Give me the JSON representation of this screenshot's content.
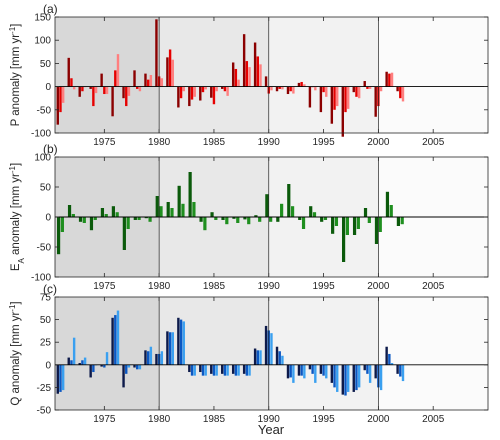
{
  "xlabel": "Year",
  "chart_data": [
    {
      "type": "bar",
      "panel_label": "(a)",
      "ylabel": "P anomaly [mm yr⁻¹]",
      "ylabel_main": "P anomaly [mm yr",
      "ylabel_sup": "-1",
      "ylabel_tail": "]",
      "ylim": [
        -100,
        150
      ],
      "yticks": [
        -100,
        -50,
        0,
        50,
        100,
        150
      ],
      "xlim": [
        1970.5,
        2010
      ],
      "xticks": [
        1975,
        1980,
        1985,
        1990,
        1995,
        2000,
        2005
      ],
      "dividers": [
        1980,
        1990,
        2000
      ],
      "era_shades": [
        "#d8d8d8",
        "#e8e8e8",
        "#f2f2f2",
        "#fbfbfb"
      ],
      "series": [
        {
          "color": "#8b0000",
          "values": [
            -82,
            62,
            -22,
            -5,
            28,
            -64,
            -25,
            35,
            28,
            145,
            63,
            -45,
            -42,
            -30,
            -24,
            -5,
            52,
            113,
            95,
            22,
            -10,
            -16,
            8,
            -45,
            -55,
            -80,
            -108,
            -12,
            12,
            -65,
            32,
            -10
          ]
        },
        {
          "color": "#e60000",
          "values": [
            -55,
            18,
            -10,
            -42,
            -16,
            35,
            -42,
            -5,
            15,
            22,
            80,
            -25,
            -28,
            -12,
            -38,
            -10,
            38,
            55,
            65,
            -15,
            -5,
            -10,
            10,
            0,
            -12,
            -50,
            -55,
            -22,
            -5,
            -42,
            28,
            -25
          ]
        },
        {
          "color": "#ff7f7f",
          "values": [
            -35,
            -6,
            0,
            -14,
            -16,
            70,
            -20,
            -10,
            25,
            18,
            58,
            -10,
            -22,
            -6,
            -10,
            -20,
            15,
            42,
            48,
            -8,
            -6,
            -15,
            5,
            -8,
            -22,
            -42,
            -48,
            -25,
            -5,
            -10,
            30,
            -32
          ]
        }
      ]
    },
    {
      "type": "bar",
      "panel_label": "(b)",
      "ylabel": "E_A anomaly [mm yr⁻¹]",
      "ylabel_main": "E",
      "ylabel_sub": "A",
      "ylabel_rest": " anomaly [mm yr",
      "ylabel_sup": "-1",
      "ylabel_tail": "]",
      "ylim": [
        -100,
        100
      ],
      "yticks": [
        -100,
        -50,
        0,
        50,
        100
      ],
      "xlim": [
        1970.5,
        2010
      ],
      "xticks": [
        1975,
        1980,
        1985,
        1990,
        1995,
        2000,
        2005
      ],
      "dividers": [
        1980,
        1990,
        2000
      ],
      "era_shades": [
        "#d8d8d8",
        "#e8e8e8",
        "#f2f2f2",
        "#fbfbfb"
      ],
      "series": [
        {
          "color": "#0b5a0b",
          "values": [
            -62,
            20,
            -8,
            -22,
            15,
            18,
            -55,
            -5,
            -2,
            35,
            25,
            52,
            75,
            -8,
            8,
            -5,
            -3,
            -4,
            3,
            38,
            -8,
            55,
            -5,
            18,
            -8,
            -28,
            -75,
            -30,
            15,
            -45,
            42,
            -15
          ]
        },
        {
          "color": "#1f8f1f",
          "values": [
            -25,
            5,
            -10,
            -5,
            5,
            8,
            -20,
            -5,
            -8,
            18,
            15,
            22,
            25,
            -22,
            -5,
            -12,
            -10,
            -12,
            -8,
            -8,
            22,
            18,
            -20,
            8,
            -5,
            -15,
            -30,
            -20,
            -10,
            -25,
            20,
            -12
          ]
        }
      ]
    },
    {
      "type": "bar",
      "panel_label": "(c)",
      "ylabel": "Q anomaly [mm yr⁻¹]",
      "ylabel_main": "Q anomaly [mm yr",
      "ylabel_sup": "-1",
      "ylabel_tail": "]",
      "ylim": [
        -50,
        75
      ],
      "yticks": [
        -50,
        -25,
        0,
        25,
        50,
        75
      ],
      "xlim": [
        1970.5,
        2010
      ],
      "xticks": [
        1975,
        1980,
        1985,
        1990,
        1995,
        2000,
        2005
      ],
      "dividers": [
        1980,
        1990,
        2000
      ],
      "era_shades": [
        "#d8d8d8",
        "#e8e8e8",
        "#f2f2f2",
        "#fbfbfb"
      ],
      "series": [
        {
          "color": "#0d1a4a",
          "values": [
            -32,
            8,
            2,
            -14,
            -2,
            52,
            -25,
            -3,
            16,
            12,
            37,
            52,
            -8,
            -8,
            -10,
            -10,
            -10,
            -10,
            18,
            43,
            20,
            -15,
            -12,
            -5,
            -10,
            -20,
            -33,
            -30,
            -6,
            -15,
            20,
            -10
          ]
        },
        {
          "color": "#0b57c2",
          "values": [
            -30,
            5,
            5,
            -8,
            -3,
            55,
            -10,
            -5,
            15,
            12,
            36,
            50,
            -12,
            -12,
            -12,
            -12,
            -12,
            -12,
            16,
            38,
            15,
            -14,
            -12,
            -10,
            -12,
            -25,
            -34,
            -28,
            -10,
            -25,
            12,
            -13
          ]
        },
        {
          "color": "#3aa0f0",
          "values": [
            -28,
            30,
            8,
            0,
            14,
            60,
            -3,
            -5,
            20,
            15,
            36,
            48,
            -12,
            -12,
            -12,
            -12,
            -12,
            -12,
            16,
            35,
            10,
            -20,
            -15,
            -20,
            -15,
            -30,
            -30,
            -25,
            -20,
            -28,
            2,
            -18
          ]
        }
      ]
    }
  ]
}
